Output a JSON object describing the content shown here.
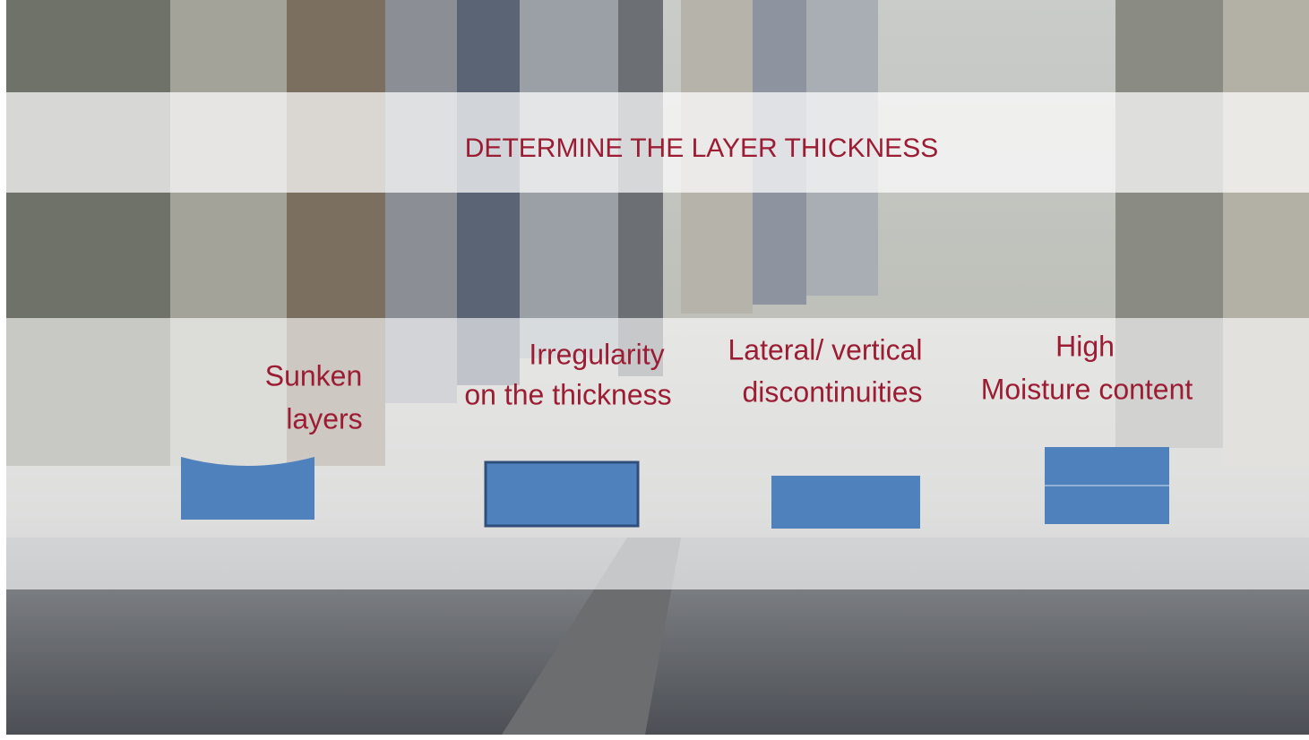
{
  "title": "DETERMINE THE LAYER THICKNESS",
  "items": [
    {
      "lines": [
        "Sunken",
        "layers"
      ]
    },
    {
      "lines": [
        "Irregularity",
        "on the thickness"
      ]
    },
    {
      "lines": [
        "Lateral/ vertical",
        "discontinuities"
      ]
    },
    {
      "lines": [
        "High",
        "Moisture content"
      ]
    }
  ]
}
